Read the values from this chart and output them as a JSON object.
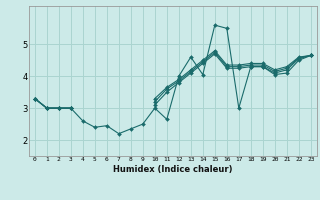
{
  "title": "",
  "xlabel": "Humidex (Indice chaleur)",
  "ylabel": "",
  "xlim": [
    -0.5,
    23.5
  ],
  "ylim": [
    1.5,
    6.2
  ],
  "yticks": [
    2,
    3,
    4,
    5
  ],
  "xticks": [
    0,
    1,
    2,
    3,
    4,
    5,
    6,
    7,
    8,
    9,
    10,
    11,
    12,
    13,
    14,
    15,
    16,
    17,
    18,
    19,
    20,
    21,
    22,
    23
  ],
  "bg_color": "#cceae8",
  "grid_color": "#aad4d0",
  "line_color": "#1a6b6b",
  "series": [
    [
      3.3,
      3.0,
      3.0,
      3.0,
      2.6,
      2.4,
      2.45,
      2.2,
      2.35,
      2.5,
      3.0,
      2.65,
      4.0,
      4.6,
      4.05,
      5.6,
      5.5,
      3.0,
      4.3,
      4.3,
      4.05,
      4.1,
      4.5,
      4.65
    ],
    [
      3.3,
      3.0,
      3.0,
      3.0,
      null,
      null,
      null,
      null,
      null,
      null,
      3.1,
      3.5,
      3.8,
      4.1,
      4.4,
      4.7,
      4.25,
      4.25,
      4.3,
      4.3,
      4.1,
      4.2,
      4.55,
      4.65
    ],
    [
      3.3,
      3.0,
      3.0,
      3.0,
      null,
      null,
      null,
      null,
      null,
      null,
      3.2,
      3.6,
      3.85,
      4.15,
      4.45,
      4.75,
      4.3,
      4.3,
      4.35,
      4.35,
      4.15,
      4.25,
      4.58,
      4.65
    ],
    [
      3.3,
      3.0,
      3.0,
      3.0,
      null,
      null,
      null,
      null,
      null,
      null,
      3.3,
      3.65,
      3.9,
      4.2,
      4.5,
      4.8,
      4.35,
      4.35,
      4.4,
      4.4,
      4.2,
      4.3,
      4.6,
      4.65
    ]
  ]
}
